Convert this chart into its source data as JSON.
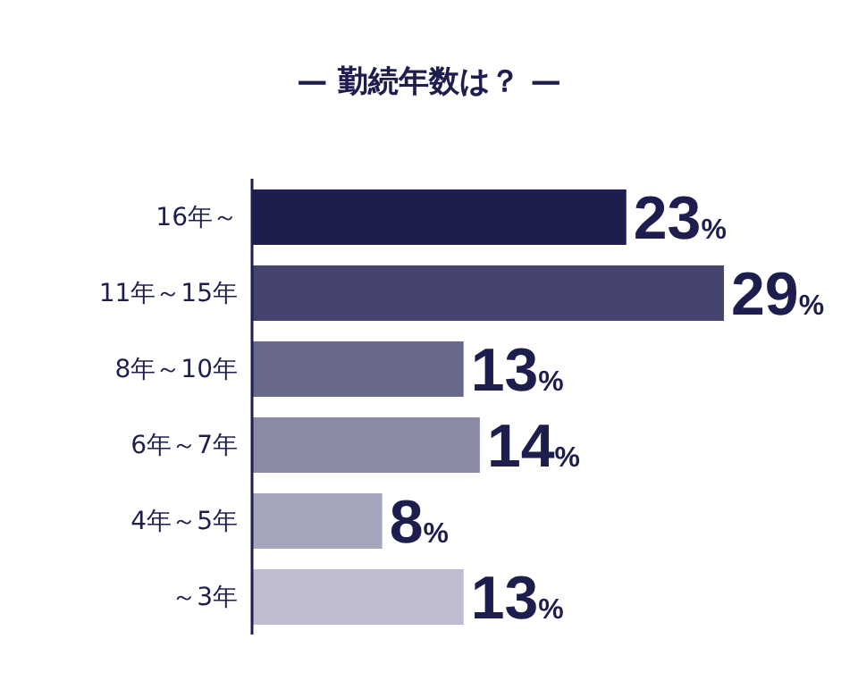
{
  "chart_data": {
    "type": "bar",
    "orientation": "horizontal",
    "title": "— 勤続年数は？ —",
    "categories": [
      "16年～",
      "11年～15年",
      "8年～10年",
      "6年～7年",
      "4年～5年",
      "～3年"
    ],
    "values": [
      23,
      29,
      13,
      14,
      8,
      13
    ],
    "colors": [
      "#1e1e4e",
      "#44446e",
      "#68688a",
      "#8b8ba6",
      "#a5a5bb",
      "#bdbdcf"
    ],
    "value_labels": [
      "23%",
      "29%",
      "13%",
      "14%",
      "8%",
      "13%"
    ]
  }
}
